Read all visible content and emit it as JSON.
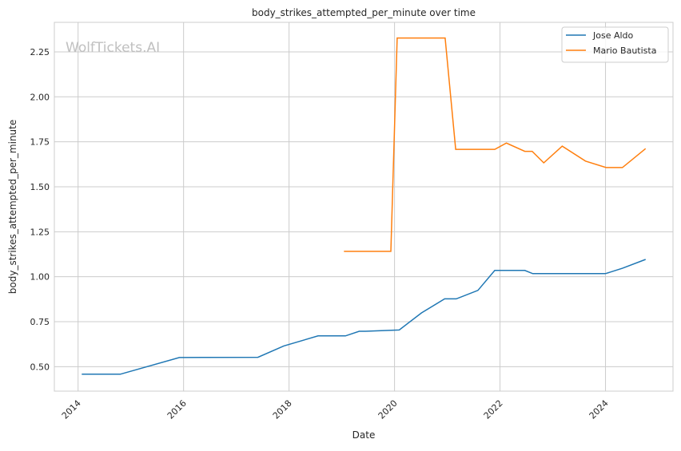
{
  "chart_data": {
    "type": "line",
    "title": "body_strikes_attempted_per_minute over time",
    "xlabel": "Date",
    "ylabel": "body_strikes_attempted_per_minute",
    "watermark": "WolfTickets.AI",
    "xlim": [
      2013.55,
      2025.28
    ],
    "ylim": [
      0.364,
      2.414
    ],
    "xticks": [
      2014,
      2016,
      2018,
      2020,
      2022,
      2024
    ],
    "xtick_labels": [
      "2014",
      "2016",
      "2018",
      "2020",
      "2022",
      "2024"
    ],
    "yticks": [
      0.5,
      0.75,
      1.0,
      1.25,
      1.5,
      1.75,
      2.0,
      2.25
    ],
    "ytick_labels": [
      "0.50",
      "0.75",
      "1.00",
      "1.25",
      "1.50",
      "1.75",
      "2.00",
      "2.25"
    ],
    "grid": true,
    "legend_position": "top-right",
    "series": [
      {
        "name": "Jose Aldo",
        "color": "#1f77b4",
        "x": [
          2014.07,
          2014.8,
          2015.92,
          2017.41,
          2017.9,
          2018.55,
          2019.07,
          2019.33,
          2019.45,
          2020.09,
          2020.51,
          2020.95,
          2021.17,
          2021.58,
          2021.9,
          2022.47,
          2022.62,
          2024.0,
          2024.32,
          2024.76
        ],
        "y": [
          0.458,
          0.458,
          0.551,
          0.552,
          0.615,
          0.671,
          0.671,
          0.697,
          0.697,
          0.704,
          0.799,
          0.877,
          0.877,
          0.924,
          1.035,
          1.035,
          1.017,
          1.017,
          1.047,
          1.096
        ]
      },
      {
        "name": "Mario Bautista",
        "color": "#ff7f0e",
        "x": [
          2019.04,
          2019.93,
          2020.05,
          2020.96,
          2021.16,
          2021.9,
          2022.12,
          2022.47,
          2022.61,
          2022.83,
          2023.18,
          2023.62,
          2024.01,
          2024.32,
          2024.76
        ],
        "y": [
          1.141,
          1.141,
          2.327,
          2.327,
          1.708,
          1.708,
          1.743,
          1.697,
          1.697,
          1.633,
          1.726,
          1.643,
          1.607,
          1.607,
          1.712
        ]
      }
    ]
  }
}
